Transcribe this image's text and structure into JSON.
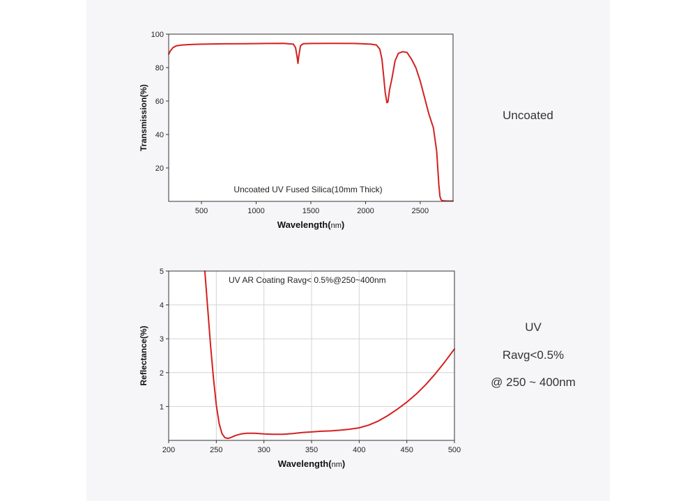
{
  "chart_data": [
    {
      "type": "line",
      "title": "Uncoated UV Fused Silica(10mm Thick)",
      "xlabel": "Wavelength(",
      "xlabel_unit": "nm",
      "xlabel_close": ")",
      "ylabel": "Transmission(%)",
      "xlim": [
        200,
        2800
      ],
      "ylim": [
        0,
        100
      ],
      "xticks": [
        500,
        1000,
        1500,
        2000,
        2500
      ],
      "yticks": [
        20,
        40,
        60,
        80,
        100
      ],
      "grid": false,
      "line_color": "#d42020",
      "series": [
        {
          "x": [
            200,
            215,
            240,
            270,
            320,
            400,
            500,
            700,
            900,
            1100,
            1250,
            1340,
            1360,
            1375,
            1382,
            1390,
            1405,
            1430,
            1500,
            1700,
            1900,
            2050,
            2100,
            2130,
            2150,
            2165,
            2180,
            2195,
            2205,
            2212,
            2220,
            2240,
            2270,
            2300,
            2340,
            2380,
            2420,
            2460,
            2500,
            2540,
            2580,
            2620,
            2650,
            2670,
            2680,
            2690,
            2700,
            2720,
            2750,
            2800
          ],
          "y": [
            88,
            90,
            92,
            93,
            93.5,
            93.8,
            94,
            94.2,
            94.3,
            94.4,
            94.5,
            94,
            92,
            86,
            82.5,
            87,
            93,
            94.3,
            94.4,
            94.5,
            94.4,
            94,
            93.5,
            91,
            85,
            75,
            65,
            59,
            59.5,
            63,
            67,
            73,
            84,
            88.5,
            89.5,
            89,
            85,
            80,
            72,
            62,
            52,
            44,
            30,
            10,
            3,
            1,
            0.5,
            0.3,
            0.2,
            0.2
          ]
        }
      ]
    },
    {
      "type": "line",
      "title": "UV AR Coating Ravg< 0.5%@250~400nm",
      "xlabel": "Wavelength(",
      "xlabel_unit": "nm",
      "xlabel_close": ")",
      "ylabel": "Reflectance(%)",
      "xlim": [
        200,
        500
      ],
      "ylim": [
        0,
        5
      ],
      "xticks": [
        200,
        250,
        300,
        350,
        400,
        450,
        500
      ],
      "yticks": [
        1,
        2,
        3,
        4,
        5
      ],
      "grid": true,
      "line_color": "#d42020",
      "series": [
        {
          "x": [
            238,
            241,
            244,
            247,
            250,
            253,
            256,
            259,
            262,
            265,
            268,
            272,
            276,
            282,
            290,
            300,
            310,
            320,
            330,
            340,
            350,
            360,
            370,
            380,
            390,
            400,
            410,
            420,
            430,
            440,
            450,
            460,
            470,
            480,
            490,
            500
          ],
          "y": [
            5,
            3.9,
            2.8,
            1.85,
            1.05,
            0.5,
            0.2,
            0.08,
            0.06,
            0.08,
            0.12,
            0.16,
            0.19,
            0.21,
            0.21,
            0.19,
            0.18,
            0.18,
            0.2,
            0.23,
            0.25,
            0.27,
            0.28,
            0.3,
            0.33,
            0.37,
            0.45,
            0.57,
            0.73,
            0.92,
            1.13,
            1.37,
            1.65,
            1.97,
            2.32,
            2.7
          ]
        }
      ]
    }
  ],
  "labels": {
    "uncoated": "Uncoated",
    "uv_line1": "UV",
    "uv_line2": "Ravg<0.5%",
    "uv_line3": "@ 250 ~ 400nm"
  }
}
